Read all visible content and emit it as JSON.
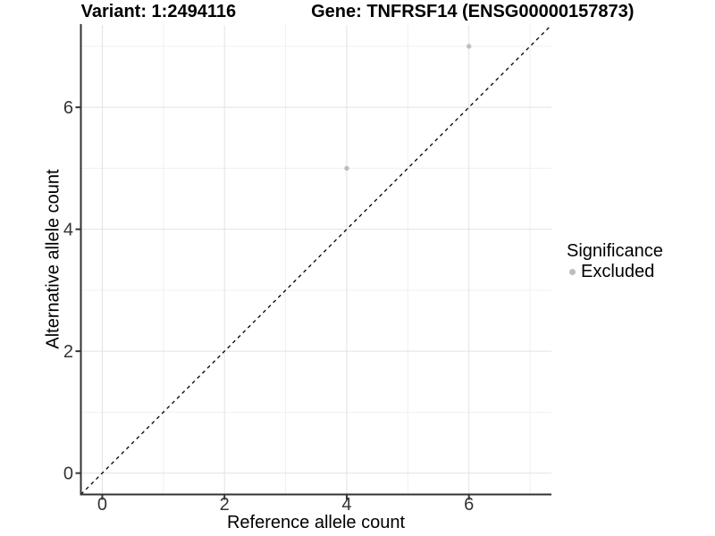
{
  "figure": {
    "background": "#ffffff"
  },
  "chart_data": {
    "type": "scatter",
    "title_segments": [
      "Variant: 1:2494116",
      "Gene: TNFRSF14 (ENSG00000157873)"
    ],
    "xlabel": "Reference allele count",
    "ylabel": "Alternative allele count",
    "xlim": [
      -0.35,
      7.35
    ],
    "ylim": [
      -0.35,
      7.35
    ],
    "x_ticks": [
      0,
      2,
      4,
      6
    ],
    "y_ticks": [
      0,
      2,
      4,
      6
    ],
    "x_minor_ticks": [
      1,
      3,
      5,
      7
    ],
    "y_minor_ticks": [
      1,
      3,
      5,
      7
    ],
    "grid": "on",
    "series": [
      {
        "name": "Excluded",
        "color": "#bdbdbd",
        "points": [
          {
            "x": 4,
            "y": 5
          },
          {
            "x": 6,
            "y": 7
          }
        ]
      }
    ],
    "reference_line": {
      "kind": "abline",
      "slope": 1,
      "intercept": 0,
      "style": "dashed",
      "color": "#000000"
    },
    "legend": {
      "title": "Significance",
      "position": "right",
      "items": [
        {
          "label": "Excluded",
          "color": "#bdbdbd"
        }
      ]
    },
    "colors": {
      "axis_line": "#333333",
      "grid_major": "#e2e2e2",
      "grid_minor": "#f0f0f0",
      "tick_label": "#333333",
      "point": "#bdbdbd"
    }
  }
}
